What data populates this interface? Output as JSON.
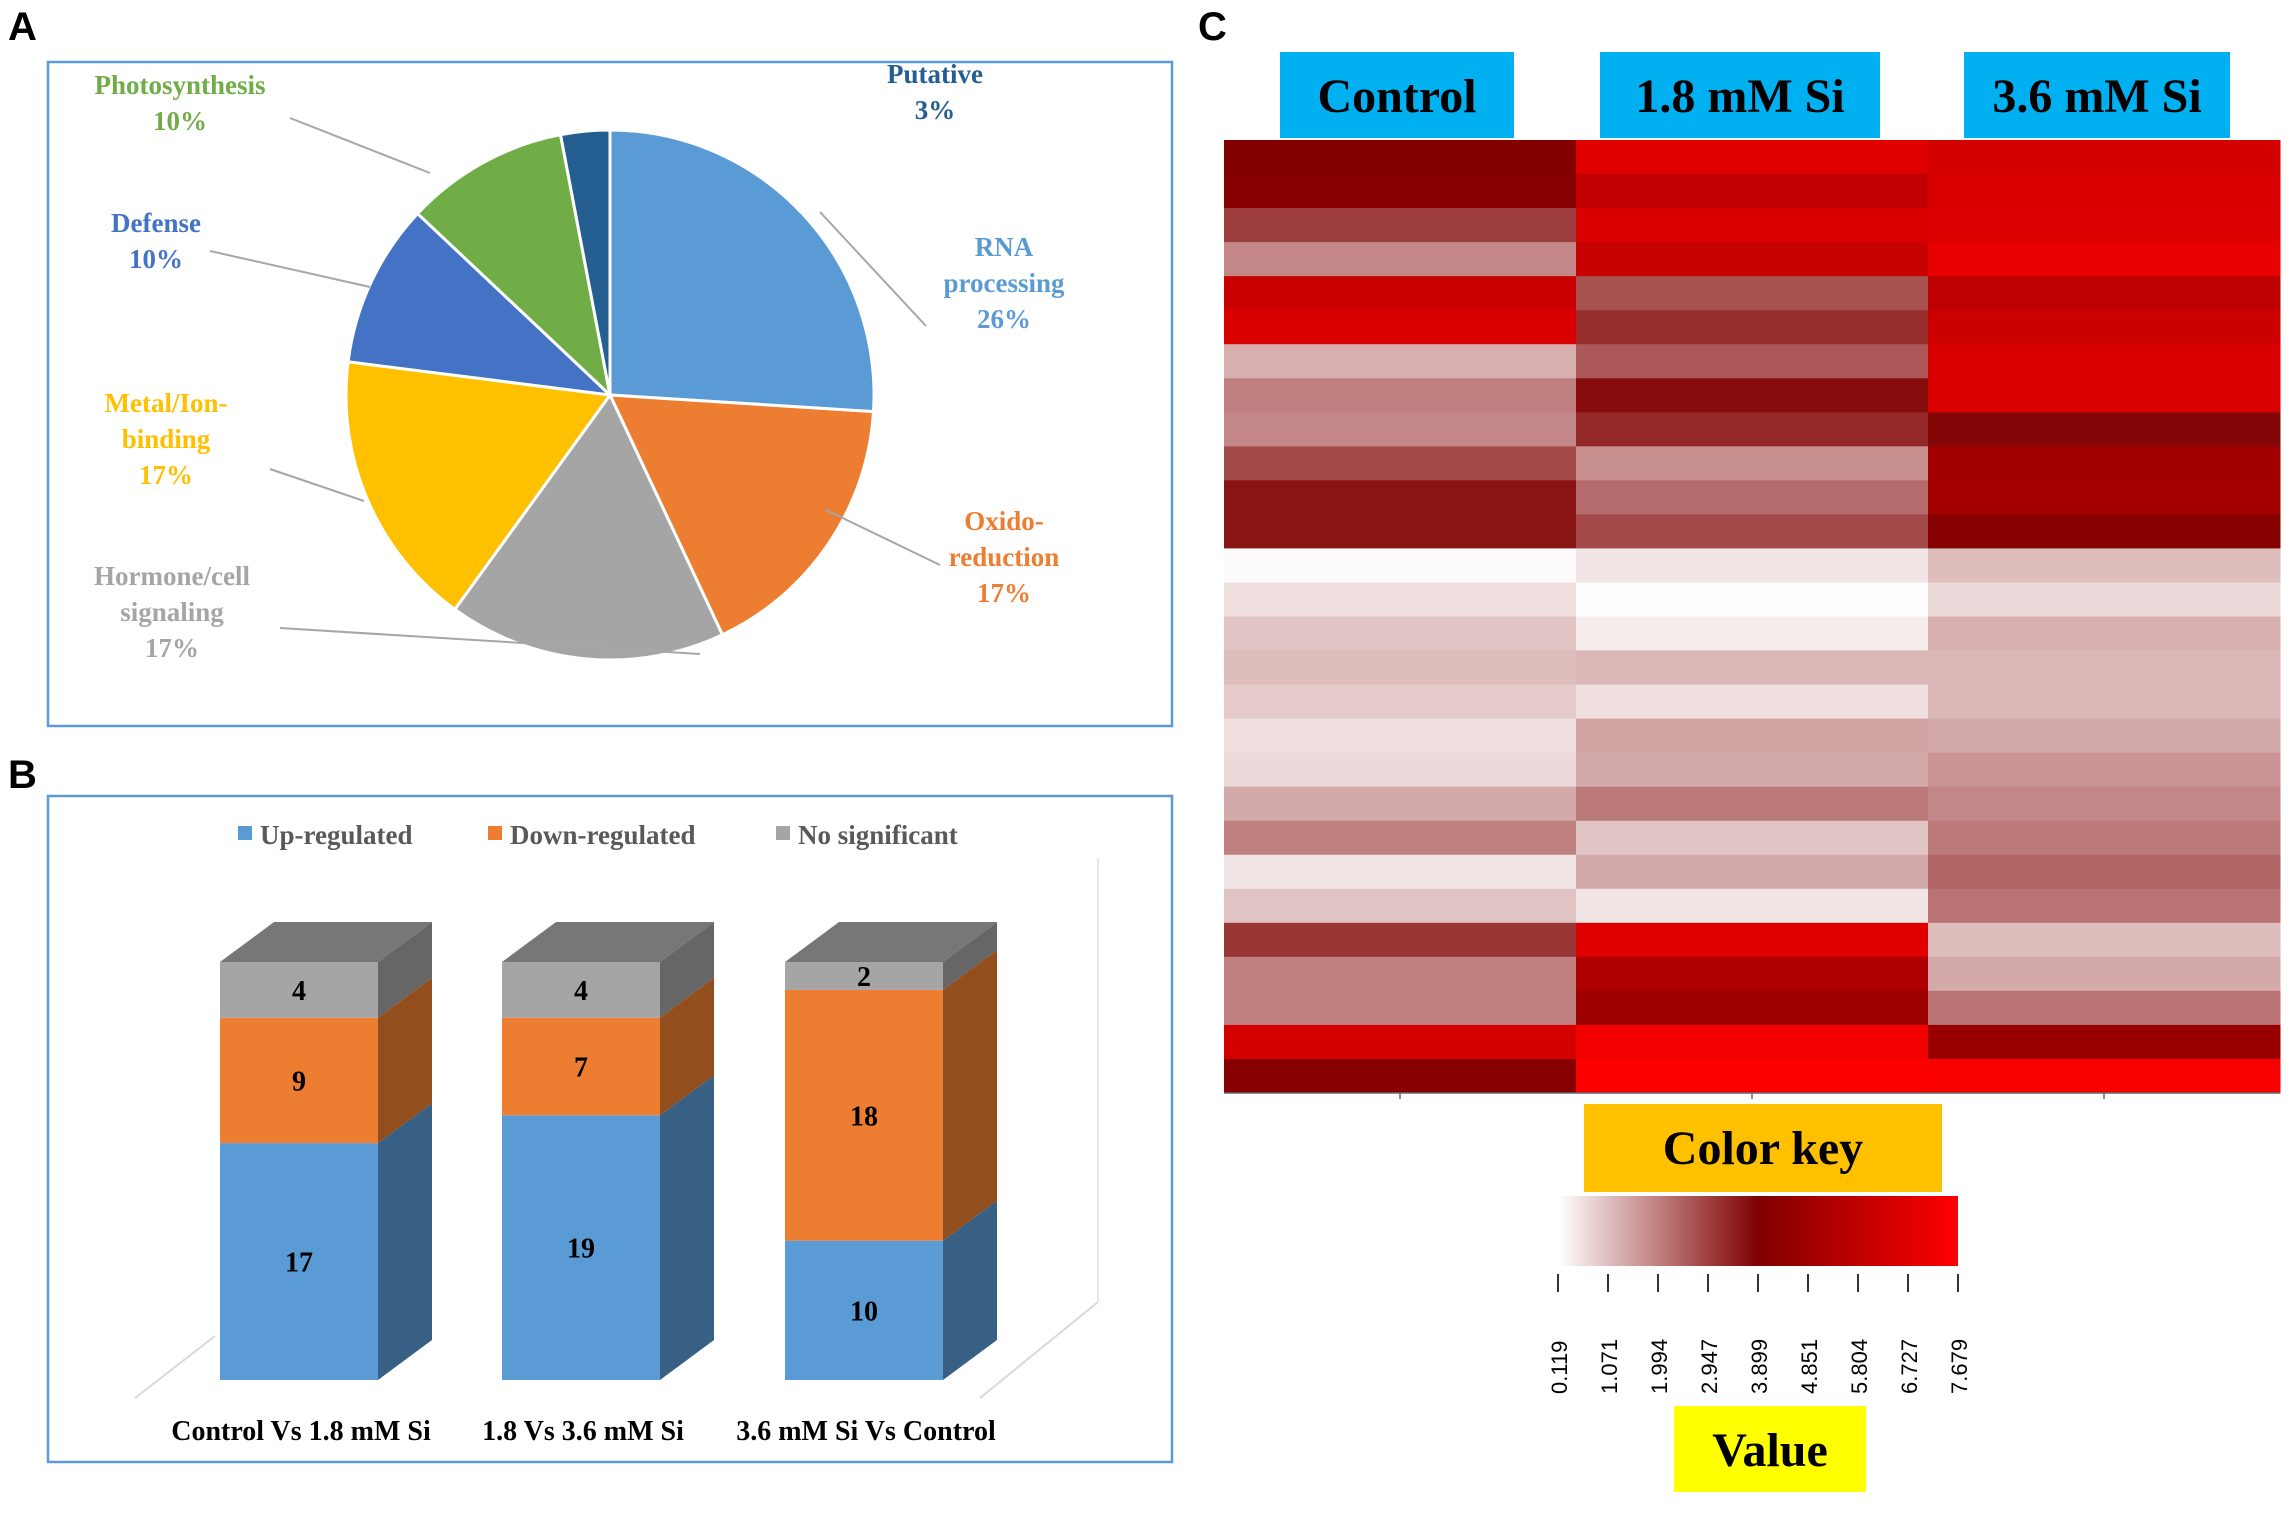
{
  "panels": {
    "a": "A",
    "b": "B",
    "c": "C"
  },
  "chart_data": [
    {
      "type": "pie",
      "panel": "A",
      "slices": [
        {
          "name": "RNA processing",
          "label_lines": [
            "RNA",
            "processing"
          ],
          "percent": 26,
          "percent_label": "26%",
          "color": "#5b9bd5",
          "label_color": "#5b9bd5"
        },
        {
          "name": "Oxido-reduction",
          "label_lines": [
            "Oxido-",
            "reduction"
          ],
          "percent": 17,
          "percent_label": "17%",
          "color": "#ed7d31",
          "label_color": "#ed7d31"
        },
        {
          "name": "Hormone/cell signaling",
          "label_lines": [
            "Hormone/cell",
            "signaling"
          ],
          "percent": 17,
          "percent_label": "17%",
          "color": "#a5a5a5",
          "label_color": "#a5a5a5"
        },
        {
          "name": "Metal/Ion-binding",
          "label_lines": [
            "Metal/Ion-",
            "binding"
          ],
          "percent": 17,
          "percent_label": "17%",
          "color": "#ffc000",
          "label_color": "#ffc000"
        },
        {
          "name": "Defense",
          "label_lines": [
            "Defense"
          ],
          "percent": 10,
          "percent_label": "10%",
          "color": "#4472c4",
          "label_color": "#4472c4"
        },
        {
          "name": "Photosynthesis",
          "label_lines": [
            "Photosynthesis"
          ],
          "percent": 10,
          "percent_label": "10%",
          "color": "#70ad47",
          "label_color": "#70ad47"
        },
        {
          "name": "Putative",
          "label_lines": [
            "Putative"
          ],
          "percent": 3,
          "percent_label": "3%",
          "color": "#255e91",
          "label_color": "#255e91"
        }
      ]
    },
    {
      "type": "bar",
      "stacked": true,
      "panel": "B",
      "categories": [
        "Control  Vs 1.8 mM  Si",
        "1.8 Vs 3.6 mM  Si",
        "3.6 mM  Si Vs Control"
      ],
      "series": [
        {
          "name": "Up-regulated",
          "values": [
            17,
            19,
            10
          ],
          "color": "#5b9bd5"
        },
        {
          "name": "Down-regulated",
          "values": [
            9,
            7,
            18
          ],
          "color": "#ed7d31"
        },
        {
          "name": "No significant",
          "values": [
            4,
            4,
            2
          ],
          "color": "#a5a5a5"
        }
      ],
      "legend_position": "top"
    },
    {
      "type": "heatmap",
      "panel": "C",
      "columns": [
        "Control",
        "1.8 mM Si",
        "3.6 mM Si"
      ],
      "rows": [
        [
          4.0,
          6.8,
          6.4
        ],
        [
          4.1,
          5.8,
          6.6
        ],
        [
          3.0,
          6.6,
          6.7
        ],
        [
          1.9,
          6.0,
          7.0
        ],
        [
          6.1,
          2.7,
          5.7
        ],
        [
          6.6,
          3.2,
          6.2
        ],
        [
          1.3,
          2.6,
          6.6
        ],
        [
          2.0,
          3.7,
          6.6
        ],
        [
          1.9,
          3.3,
          3.8
        ],
        [
          2.8,
          1.8,
          4.9
        ],
        [
          3.6,
          2.3,
          5.0
        ],
        [
          3.6,
          2.8,
          4.1
        ],
        [
          0.2,
          0.5,
          1.1
        ],
        [
          0.6,
          0.15,
          0.7
        ],
        [
          1.0,
          0.4,
          1.3
        ],
        [
          1.1,
          1.2,
          1.2
        ],
        [
          0.9,
          0.6,
          1.2
        ],
        [
          0.6,
          1.5,
          1.4
        ],
        [
          0.7,
          1.4,
          1.7
        ],
        [
          1.4,
          2.1,
          1.9
        ],
        [
          2.0,
          1.0,
          2.1
        ],
        [
          0.5,
          1.4,
          2.4
        ],
        [
          1.0,
          0.5,
          2.2
        ],
        [
          3.1,
          6.8,
          1.1
        ],
        [
          2.0,
          5.3,
          1.4
        ],
        [
          2.0,
          4.8,
          2.2
        ],
        [
          6.4,
          7.3,
          4.6
        ],
        [
          4.1,
          7.6,
          7.5
        ]
      ],
      "color_key_label": "Color key",
      "value_label": "Value",
      "scale_ticks": [
        "0.119",
        "1.071",
        "1.994",
        "2.947",
        "3.899",
        "4.851",
        "5.804",
        "6.727",
        "7.679"
      ],
      "scale_min": 0.119,
      "scale_max": 7.679,
      "gradient": [
        "#ffffff",
        "#800000",
        "#ff0000"
      ]
    }
  ]
}
